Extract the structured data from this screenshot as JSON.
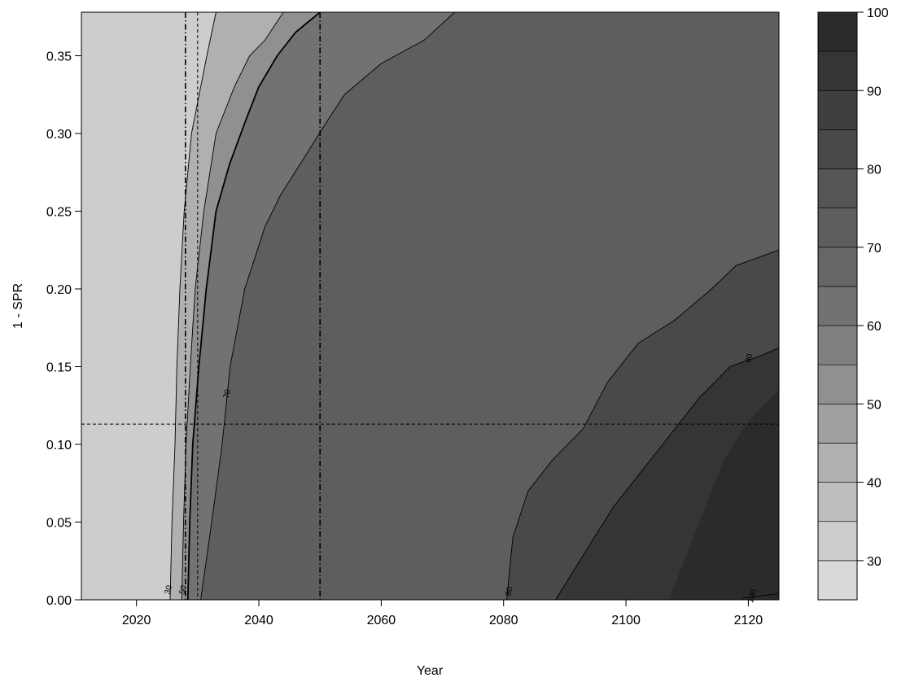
{
  "chart_data": {
    "type": "heatmap",
    "xlabel": "Year",
    "ylabel": "1 - SPR",
    "xlim": [
      2011,
      2125
    ],
    "ylim": [
      0,
      0.378
    ],
    "x_ticks": [
      2020,
      2040,
      2060,
      2080,
      2100,
      2120
    ],
    "y_ticks": [
      "0.00",
      "0.05",
      "0.10",
      "0.15",
      "0.20",
      "0.25",
      "0.30",
      "0.35"
    ],
    "fill_levels": [
      25,
      30,
      35,
      40,
      45,
      50,
      55,
      60,
      65,
      70,
      75,
      80,
      85,
      90,
      95,
      100
    ],
    "fill_colors": [
      "#d9d9d9",
      "#cdcdcd",
      "#bebebe",
      "#b0b0b0",
      "#a0a0a0",
      "#909090",
      "#808080",
      "#727272",
      "#666666",
      "#5e5e5e",
      "#555555",
      "#494949",
      "#3f3f3f",
      "#353535",
      "#2b2b2b"
    ],
    "colorbar_ticks": [
      30,
      40,
      50,
      60,
      70,
      80,
      90,
      100
    ],
    "contours": [
      {
        "level": "30",
        "label": "30",
        "points": [
          [
            2025.5,
            0
          ],
          [
            2025.8,
            0.05
          ],
          [
            2026.3,
            0.1
          ],
          [
            2026.6,
            0.15
          ],
          [
            2027.1,
            0.2
          ],
          [
            2027.8,
            0.25
          ],
          [
            2029,
            0.3
          ],
          [
            2031.5,
            0.35
          ],
          [
            2033,
            0.378
          ]
        ]
      },
      {
        "level": "50",
        "label": "50",
        "points": [
          [
            2027.4,
            0
          ],
          [
            2027.7,
            0.05
          ],
          [
            2028.1,
            0.1
          ],
          [
            2028.8,
            0.15
          ],
          [
            2029.6,
            0.2
          ],
          [
            2031,
            0.25
          ],
          [
            2033,
            0.3
          ],
          [
            2036,
            0.33
          ],
          [
            2038.5,
            0.35
          ],
          [
            2041,
            0.36
          ],
          [
            2044,
            0.378
          ]
        ]
      },
      {
        "level": "60",
        "label": "",
        "points": [
          [
            2028.4,
            0
          ],
          [
            2028.7,
            0.05
          ],
          [
            2029.2,
            0.1
          ],
          [
            2030.2,
            0.15
          ],
          [
            2031.4,
            0.2
          ],
          [
            2033,
            0.25
          ],
          [
            2035.2,
            0.28
          ],
          [
            2038,
            0.31
          ],
          [
            2040,
            0.33
          ],
          [
            2043,
            0.35
          ],
          [
            2046,
            0.365
          ],
          [
            2050,
            0.378
          ]
        ]
      },
      {
        "level": "70",
        "label": "70",
        "points": [
          [
            2030.5,
            0
          ],
          [
            2032.3,
            0.05
          ],
          [
            2034,
            0.1
          ],
          [
            2035.3,
            0.15
          ],
          [
            2037.7,
            0.2
          ],
          [
            2041,
            0.24
          ],
          [
            2043.5,
            0.26
          ],
          [
            2047.5,
            0.285
          ],
          [
            2051.5,
            0.31
          ],
          [
            2054,
            0.325
          ],
          [
            2060,
            0.345
          ],
          [
            2067,
            0.36
          ],
          [
            2072,
            0.378
          ]
        ]
      },
      {
        "level": "80",
        "label": "80",
        "points": [
          [
            2080.5,
            0
          ],
          [
            2081.5,
            0.04
          ],
          [
            2084,
            0.07
          ],
          [
            2088,
            0.09
          ],
          [
            2093,
            0.11
          ],
          [
            2097,
            0.14
          ],
          [
            2102,
            0.165
          ],
          [
            2108,
            0.18
          ],
          [
            2114,
            0.2
          ],
          [
            2118,
            0.215
          ],
          [
            2125,
            0.225
          ]
        ]
      },
      {
        "level": "90",
        "label": "90",
        "points": [
          [
            2088.5,
            0
          ],
          [
            2094,
            0.035
          ],
          [
            2098,
            0.06
          ],
          [
            2103,
            0.085
          ],
          [
            2107,
            0.105
          ],
          [
            2112,
            0.13
          ],
          [
            2117,
            0.15
          ],
          [
            2122,
            0.157
          ],
          [
            2125,
            0.162
          ]
        ]
      },
      {
        "level": "100",
        "label": "100",
        "points": [
          [
            2119,
            0.001
          ],
          [
            2125,
            0.004
          ]
        ]
      }
    ],
    "reference_lines": [
      {
        "axis": "x",
        "value": 2028,
        "style": "dotdash"
      },
      {
        "axis": "x",
        "value": 2030,
        "style": "dashed"
      },
      {
        "axis": "x",
        "value": 2050,
        "style": "dotdash"
      },
      {
        "axis": "y",
        "value": 0.113,
        "style": "dashed"
      }
    ]
  }
}
